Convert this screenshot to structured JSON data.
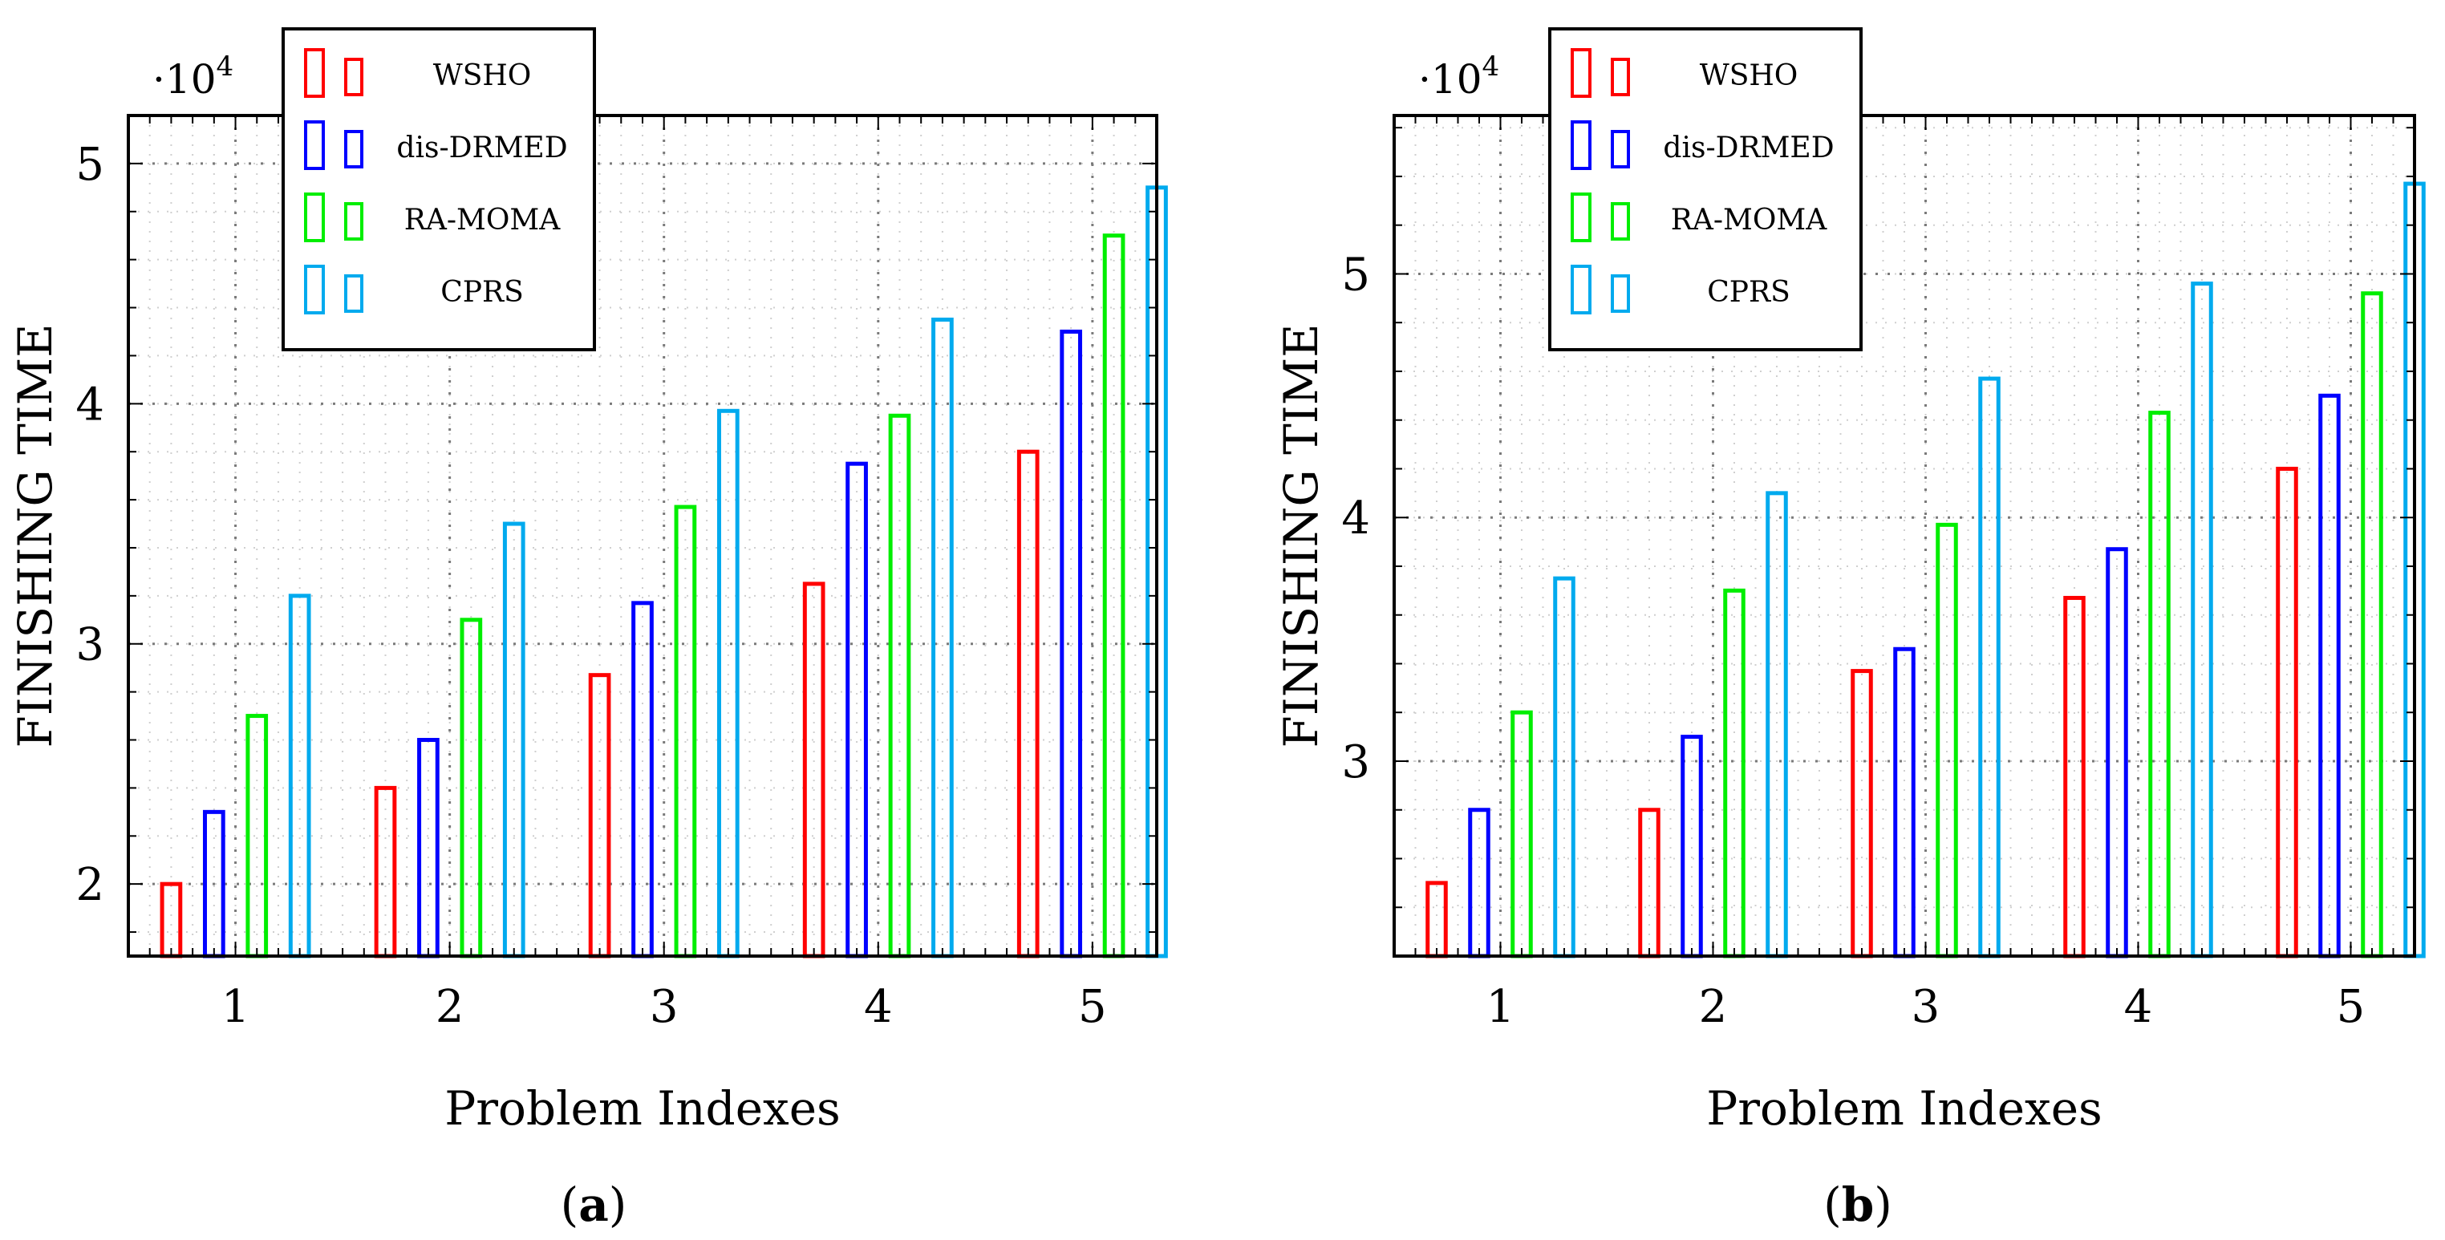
{
  "chart_data": [
    {
      "type": "bar",
      "caption_letter": "a",
      "exponent_label": "·10",
      "exponent_power": "4",
      "ylabel": "FINISHING TIME",
      "xlabel": "Problem Indexes",
      "categories": [
        "1",
        "2",
        "3",
        "4",
        "5"
      ],
      "ylim": [
        17000,
        52000
      ],
      "yticks": [
        {
          "value": 20000,
          "label": "2"
        },
        {
          "value": 30000,
          "label": "3"
        },
        {
          "value": 40000,
          "label": "4"
        },
        {
          "value": 50000,
          "label": "5"
        }
      ],
      "grid": true,
      "legend_position": "top-left",
      "series": [
        {
          "name": "WSHO",
          "color": "#ff0000",
          "values": [
            20000,
            24000,
            28700,
            32500,
            38000
          ]
        },
        {
          "name": "dis-DRMED",
          "color": "#0000ff",
          "values": [
            23000,
            26000,
            31700,
            37500,
            43000
          ]
        },
        {
          "name": "RA-MOMA",
          "color": "#00ee00",
          "values": [
            27000,
            31000,
            35700,
            39500,
            47000
          ]
        },
        {
          "name": "CPRS",
          "color": "#00aaee",
          "values": [
            32000,
            35000,
            39700,
            43500,
            49000
          ]
        }
      ]
    },
    {
      "type": "bar",
      "caption_letter": "b",
      "exponent_label": "·10",
      "exponent_power": "4",
      "ylabel": "FINISHING TIME",
      "xlabel": "Problem Indexes",
      "categories": [
        "1",
        "2",
        "3",
        "4",
        "5"
      ],
      "ylim": [
        22000,
        56500
      ],
      "yticks": [
        {
          "value": 30000,
          "label": "3"
        },
        {
          "value": 40000,
          "label": "4"
        },
        {
          "value": 50000,
          "label": "5"
        }
      ],
      "grid": true,
      "legend_position": "top-left",
      "series": [
        {
          "name": "WSHO",
          "color": "#ff0000",
          "values": [
            25000,
            28000,
            33700,
            36700,
            42000
          ]
        },
        {
          "name": "dis-DRMED",
          "color": "#0000ff",
          "values": [
            28000,
            31000,
            34600,
            38700,
            45000
          ]
        },
        {
          "name": "RA-MOMA",
          "color": "#00ee00",
          "values": [
            32000,
            37000,
            39700,
            44300,
            49200
          ]
        },
        {
          "name": "CPRS",
          "color": "#00aaee",
          "values": [
            37500,
            41000,
            45700,
            49600,
            53700
          ]
        }
      ]
    }
  ]
}
